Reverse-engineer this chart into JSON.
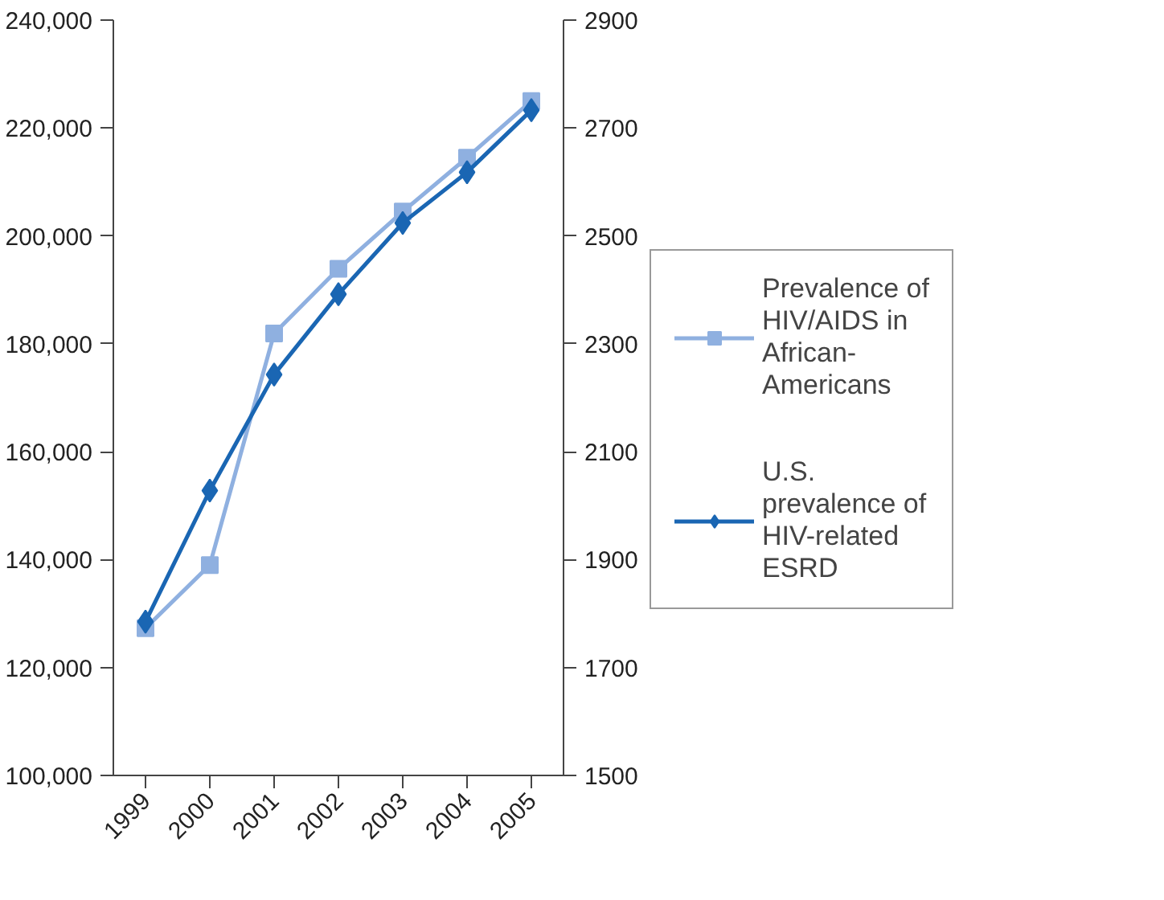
{
  "chart_data": {
    "type": "line",
    "categories": [
      "1999",
      "2000",
      "2001",
      "2002",
      "2003",
      "2004",
      "2005"
    ],
    "series": [
      {
        "name": "Prevalence of HIV/AIDS in African-Americans",
        "color": "#8fb0e0",
        "marker": "square",
        "values": [
          127300,
          139000,
          181900,
          193900,
          204500,
          214500,
          225000
        ]
      },
      {
        "name": "U.S. prevalence of HIV-related ESRD",
        "color": "#1a66b3",
        "marker": "diamond",
        "axis": "y2",
        "values": [
          1785,
          2028,
          2243,
          2392,
          2524,
          2618,
          2733
        ]
      }
    ],
    "ylim": [
      100000,
      240000
    ],
    "yticks": [
      {
        "value": 100000,
        "label": "100,000"
      },
      {
        "value": 120000,
        "label": "120,000"
      },
      {
        "value": 140000,
        "label": "140,000"
      },
      {
        "value": 160000,
        "label": "160,000"
      },
      {
        "value": 180000,
        "label": "180,000"
      },
      {
        "value": 200000,
        "label": "200,000"
      },
      {
        "value": 220000,
        "label": "220,000"
      },
      {
        "value": 240000,
        "label": "240,000"
      }
    ],
    "y2lim": [
      1500,
      2900
    ],
    "y2ticks": [
      1500,
      1700,
      1900,
      2100,
      2300,
      2500,
      2700,
      2900
    ],
    "grid": false,
    "legend": "right",
    "line_style": "solid"
  }
}
